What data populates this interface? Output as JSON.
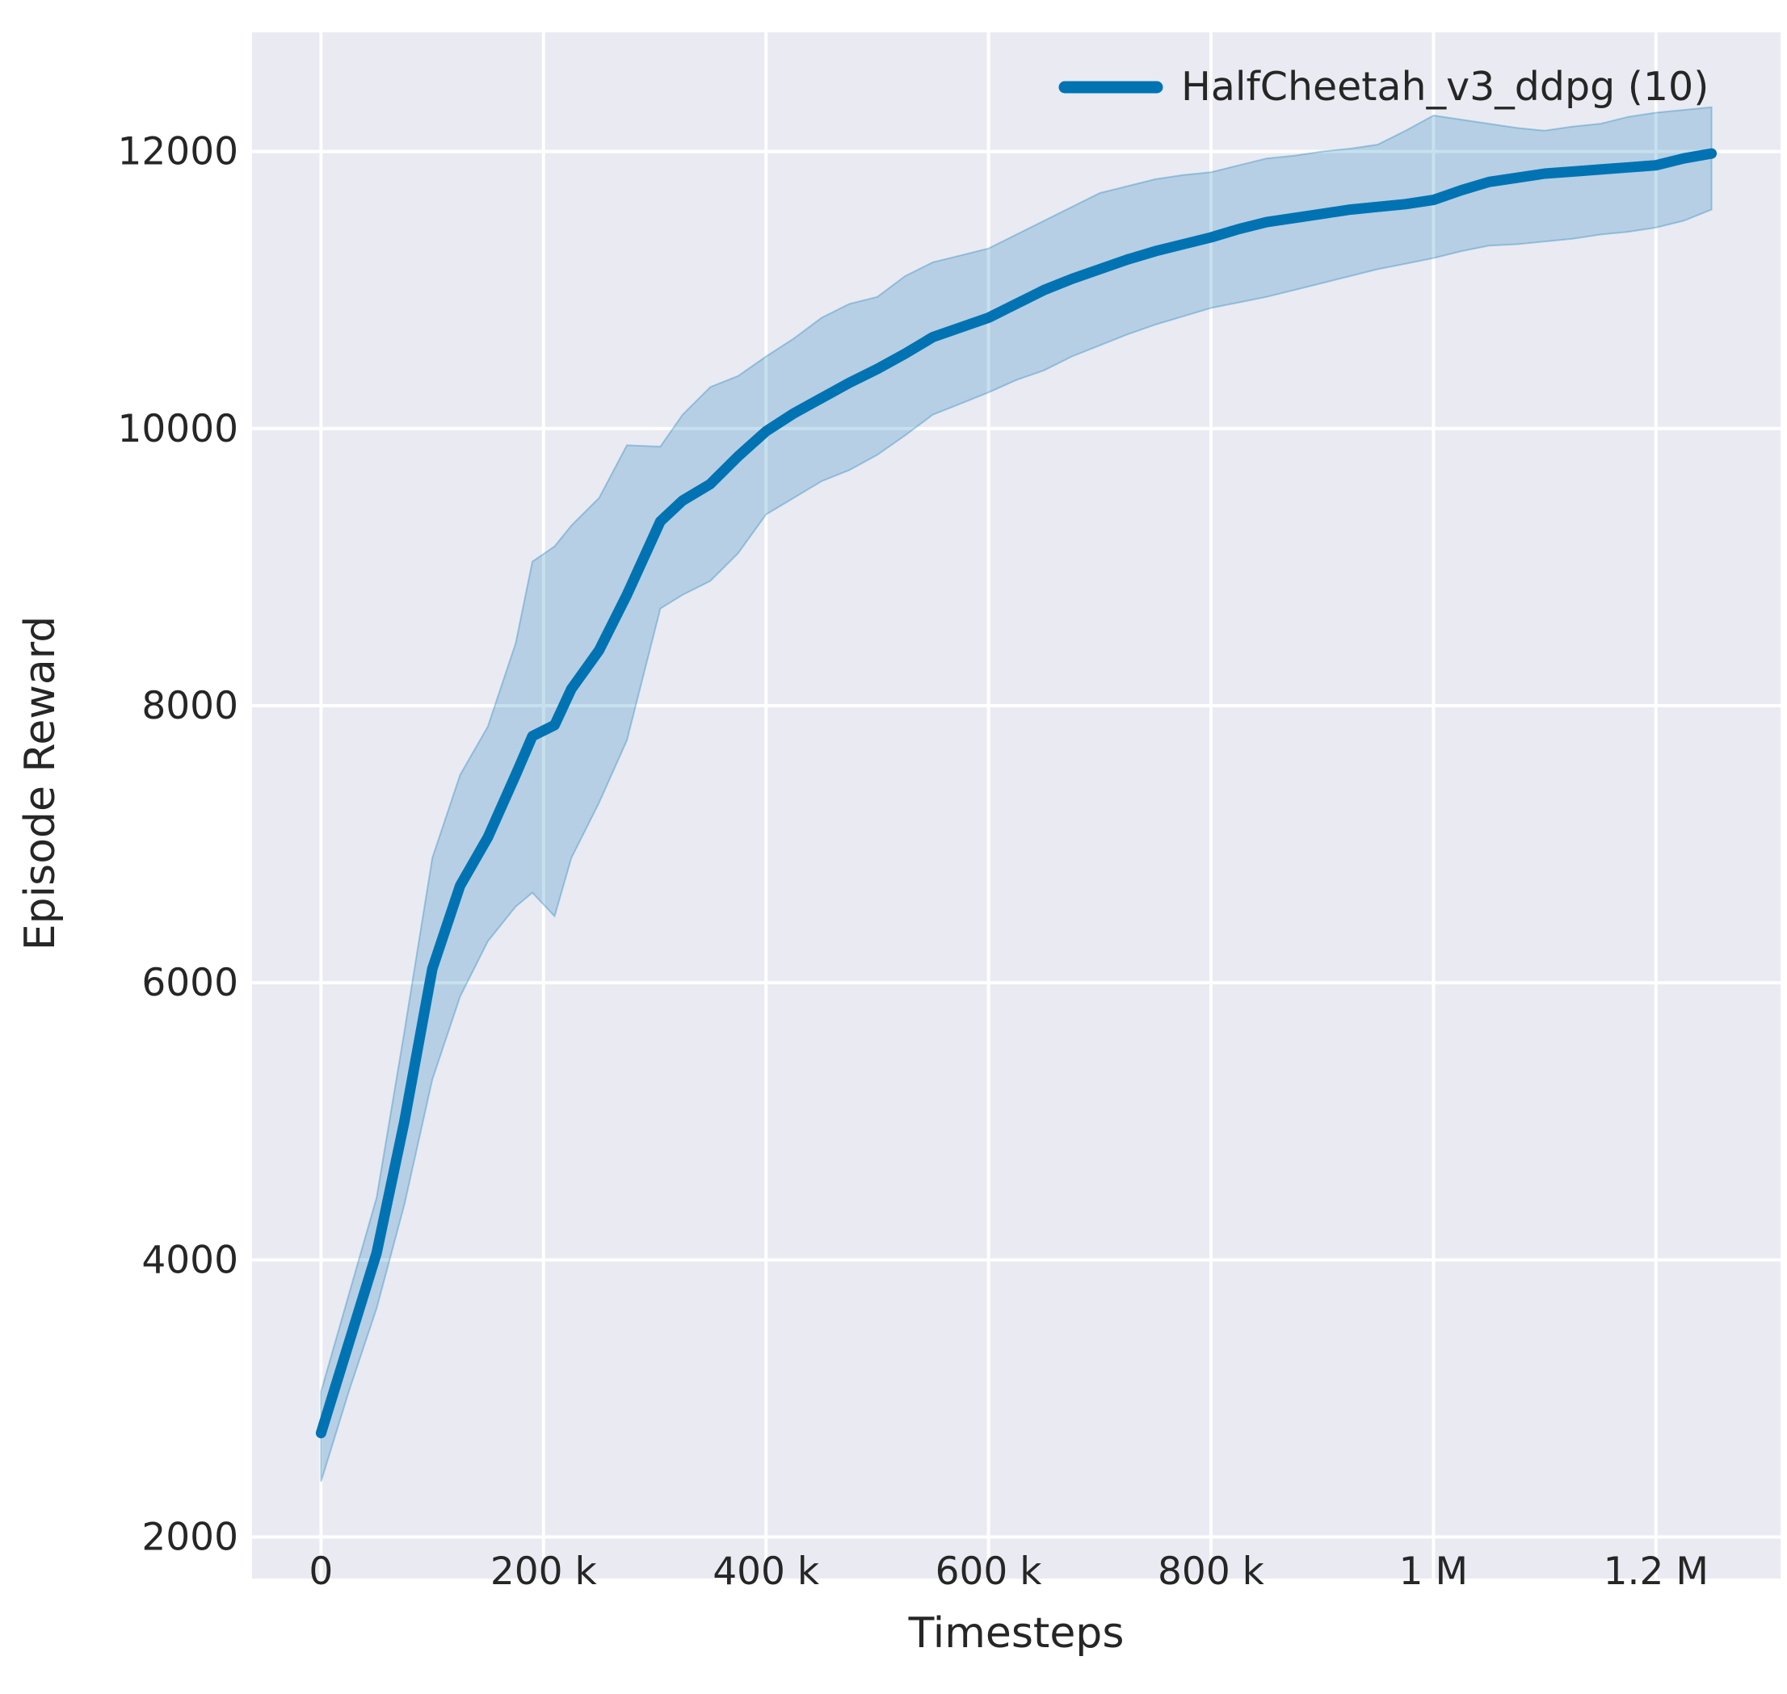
{
  "figure": {
    "background": "#ffffff",
    "axes_background": "#eaeaf2",
    "grid_color": "#ffffff",
    "text_color": "#262626"
  },
  "legend": {
    "entry_label": "HalfCheetah_v3_ddpg (10)",
    "swatch_color": "#0173b2"
  },
  "chart_data": {
    "type": "line",
    "title": "",
    "xlabel": "Timesteps",
    "ylabel": "Episode Reward",
    "xlim": [
      -62000,
      1312000
    ],
    "ylim": [
      1700,
      12860
    ],
    "grid": true,
    "legend_position": "upper right",
    "x_ticks": [
      {
        "value": 0,
        "label": "0"
      },
      {
        "value": 200000,
        "label": "200 k"
      },
      {
        "value": 400000,
        "label": "400 k"
      },
      {
        "value": 600000,
        "label": "600 k"
      },
      {
        "value": 800000,
        "label": "800 k"
      },
      {
        "value": 1000000,
        "label": "1 M"
      },
      {
        "value": 1200000,
        "label": "1.2 M"
      }
    ],
    "y_ticks": [
      {
        "value": 2000,
        "label": "2000"
      },
      {
        "value": 4000,
        "label": "4000"
      },
      {
        "value": 6000,
        "label": "6000"
      },
      {
        "value": 8000,
        "label": "8000"
      },
      {
        "value": 10000,
        "label": "10000"
      },
      {
        "value": 12000,
        "label": "12000"
      }
    ],
    "series": [
      {
        "name": "HalfCheetah_v3_ddpg (10)",
        "color": "#0173b2",
        "band_fill_alpha": 0.22,
        "band_edge_alpha": 0.3,
        "x": [
          0,
          25000,
          50000,
          75000,
          100000,
          125000,
          150000,
          175000,
          190000,
          210000,
          225000,
          250000,
          275000,
          305000,
          325000,
          350000,
          375000,
          400000,
          425000,
          450000,
          475000,
          500000,
          525000,
          550000,
          575000,
          600000,
          625000,
          650000,
          675000,
          700000,
          725000,
          750000,
          775000,
          800000,
          825000,
          850000,
          875000,
          900000,
          925000,
          950000,
          975000,
          1000000,
          1025000,
          1050000,
          1075000,
          1100000,
          1125000,
          1150000,
          1175000,
          1200000,
          1225000,
          1250000
        ],
        "mean": [
          2750,
          3400,
          4050,
          5000,
          6100,
          6700,
          7050,
          7500,
          7780,
          7860,
          8120,
          8400,
          8800,
          9330,
          9480,
          9600,
          9800,
          9980,
          10110,
          10220,
          10330,
          10430,
          10540,
          10660,
          10730,
          10800,
          10900,
          11000,
          11080,
          11150,
          11220,
          11280,
          11330,
          11380,
          11440,
          11490,
          11520,
          11550,
          11580,
          11600,
          11620,
          11650,
          11720,
          11780,
          11810,
          11840,
          11855,
          11870,
          11885,
          11900,
          11950,
          11985
        ],
        "ci_lower": [
          2400,
          3050,
          3650,
          4400,
          5300,
          5900,
          6300,
          6550,
          6650,
          6480,
          6900,
          7300,
          7750,
          8700,
          8800,
          8900,
          9100,
          9380,
          9500,
          9620,
          9700,
          9810,
          9950,
          10100,
          10180,
          10260,
          10350,
          10420,
          10520,
          10600,
          10680,
          10750,
          10810,
          10870,
          10910,
          10950,
          11000,
          11050,
          11100,
          11150,
          11190,
          11230,
          11280,
          11320,
          11330,
          11350,
          11370,
          11400,
          11420,
          11450,
          11500,
          11580
        ],
        "ci_upper": [
          3050,
          3750,
          4450,
          5650,
          6900,
          7500,
          7850,
          8450,
          9040,
          9150,
          9300,
          9500,
          9880,
          9870,
          10100,
          10300,
          10380,
          10520,
          10650,
          10800,
          10900,
          10950,
          11100,
          11200,
          11250,
          11300,
          11400,
          11500,
          11600,
          11700,
          11750,
          11800,
          11830,
          11850,
          11900,
          11950,
          11970,
          12000,
          12020,
          12050,
          12150,
          12260,
          12230,
          12200,
          12170,
          12150,
          12180,
          12200,
          12250,
          12280,
          12300,
          12320
        ]
      }
    ]
  }
}
